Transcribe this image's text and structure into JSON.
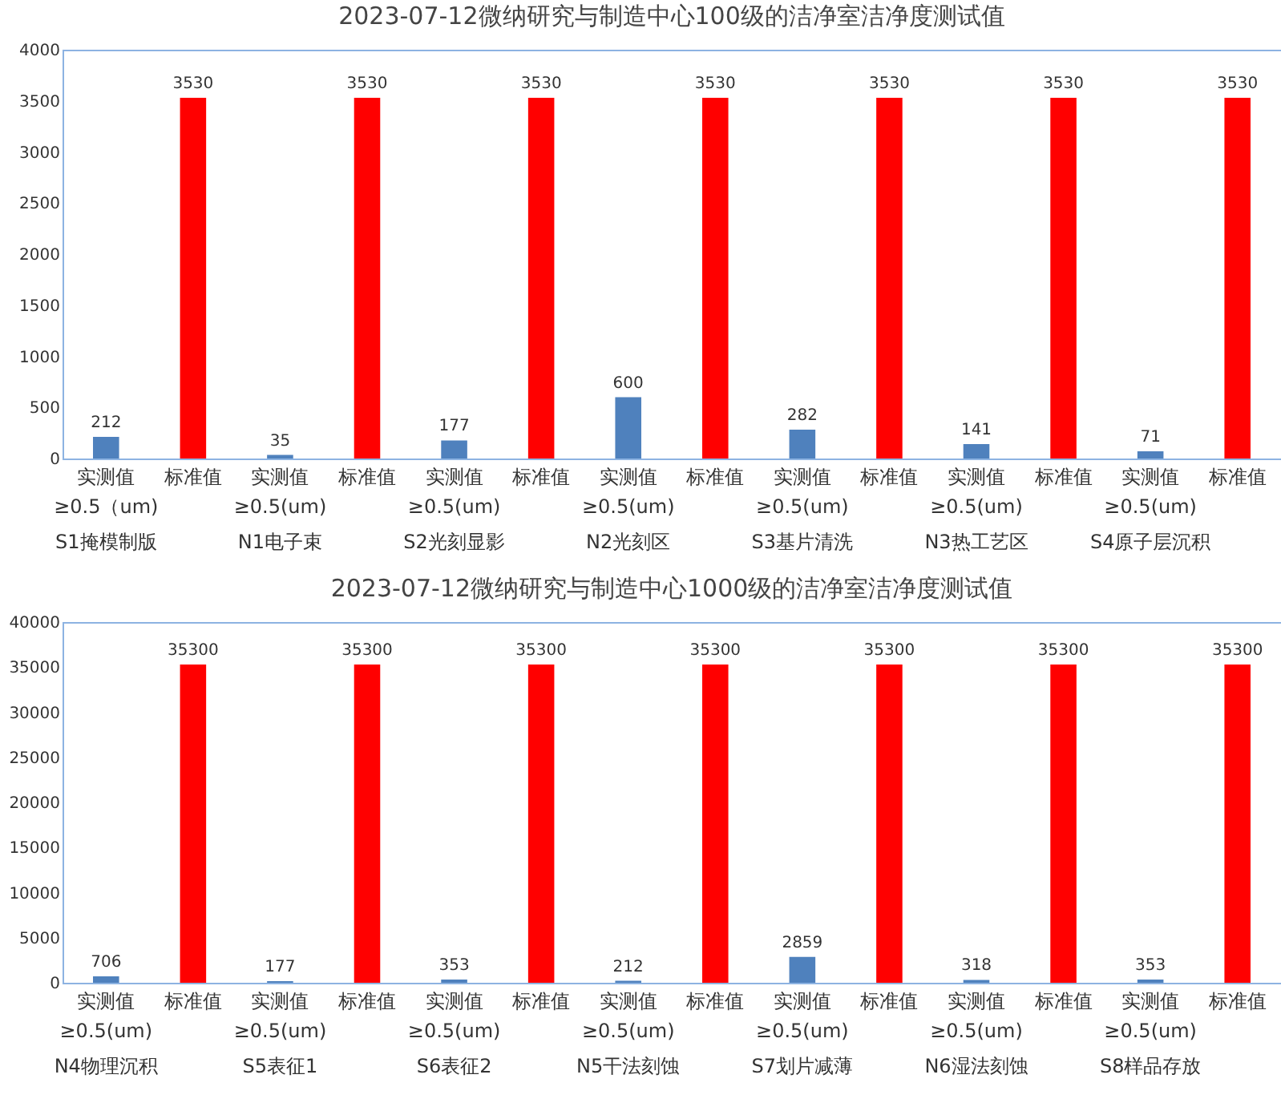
{
  "chart_data": [
    {
      "type": "bar",
      "title": "2023-07-12微纳研究与制造中心100级的洁净室洁净度测试值",
      "categories": [
        "实测值",
        "标准值",
        "实测值",
        "标准值",
        "实测值",
        "标准值",
        "实测值",
        "标准值",
        "实测值",
        "标准值",
        "实测值",
        "标准值",
        "实测值",
        "标准值"
      ],
      "values": [
        212,
        3530,
        35,
        3530,
        177,
        3530,
        600,
        3530,
        282,
        3530,
        141,
        3530,
        71,
        3530
      ],
      "colors": [
        "#4f81bd",
        "#ff0000",
        "#4f81bd",
        "#ff0000",
        "#4f81bd",
        "#ff0000",
        "#4f81bd",
        "#ff0000",
        "#4f81bd",
        "#ff0000",
        "#4f81bd",
        "#ff0000",
        "#4f81bd",
        "#ff0000"
      ],
      "ylim": [
        0,
        4000
      ],
      "yticks": [
        0,
        500,
        1000,
        1500,
        2000,
        2500,
        3000,
        3500,
        4000
      ],
      "data_labels": true,
      "annotations": [
        "≥0.5（um)",
        "S1掩模制版",
        "≥0.5(um)",
        "N1电子束",
        "≥0.5(um)",
        "S2光刻显影",
        "≥0.5(um)",
        "N2光刻区",
        "≥0.5(um)",
        "S3基片清洗",
        "≥0.5(um)",
        "N3热工艺区",
        "≥0.5(um)",
        "S4原子层沉积"
      ]
    },
    {
      "type": "bar",
      "title": "2023-07-12微纳研究与制造中心1000级的洁净室洁净度测试值",
      "categories": [
        "实测值",
        "标准值",
        "实测值",
        "标准值",
        "实测值",
        "标准值",
        "实测值",
        "标准值",
        "实测值",
        "标准值",
        "实测值",
        "标准值",
        "实测值",
        "标准值"
      ],
      "values": [
        706,
        35300,
        177,
        35300,
        353,
        35300,
        212,
        35300,
        2859,
        35300,
        318,
        35300,
        353,
        35300
      ],
      "colors": [
        "#4f81bd",
        "#ff0000",
        "#4f81bd",
        "#ff0000",
        "#4f81bd",
        "#ff0000",
        "#4f81bd",
        "#ff0000",
        "#4f81bd",
        "#ff0000",
        "#4f81bd",
        "#ff0000",
        "#4f81bd",
        "#ff0000"
      ],
      "ylim": [
        0,
        40000
      ],
      "yticks": [
        0,
        5000,
        10000,
        15000,
        20000,
        25000,
        30000,
        35000,
        40000
      ],
      "data_labels": true,
      "annotations": [
        "≥0.5(um)",
        "N4物理沉积",
        "≥0.5(um)",
        "S5表征1",
        "≥0.5(um)",
        "S6表征2",
        "≥0.5(um)",
        "N5干法刻蚀",
        "≥0.5(um)",
        "S7划片减薄",
        "≥0.5(um)",
        "N6湿法刻蚀",
        "≥0.5(um)",
        "S8样品存放"
      ]
    }
  ]
}
